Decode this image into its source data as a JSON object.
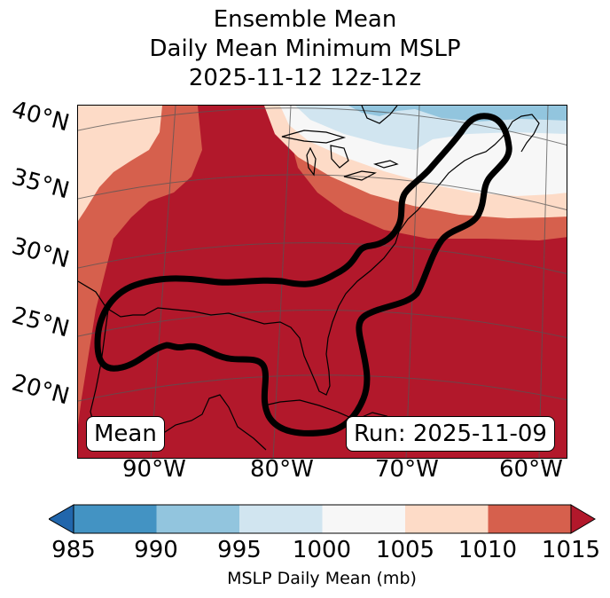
{
  "title": {
    "line1": "Ensemble Mean",
    "line2": "Daily Mean Minimum MSLP",
    "line3": "2025-11-12 12z-12z"
  },
  "map": {
    "latitude_labels": [
      "40°N",
      "35°N",
      "30°N",
      "25°N",
      "20°N"
    ],
    "longitude_labels": [
      "90°W",
      "80°W",
      "70°W",
      "60°W"
    ],
    "badges": {
      "mean": "Mean",
      "run": "Run: 2025-11-09"
    },
    "contour_color": "#000000"
  },
  "colorbar": {
    "ticks": [
      "985",
      "990",
      "995",
      "1000",
      "1005",
      "1010",
      "1015"
    ],
    "colors": {
      "below_985": "#2166ac",
      "985_990": "#4393c3",
      "990_995": "#92c5de",
      "995_1000": "#d1e5f0",
      "1000_1005": "#f7f7f7",
      "1005_1010": "#fddbc7",
      "1010_1015": "#d6604d",
      "above_1015": "#b2182b"
    },
    "label": "MSLP Daily Mean (mb)"
  }
}
